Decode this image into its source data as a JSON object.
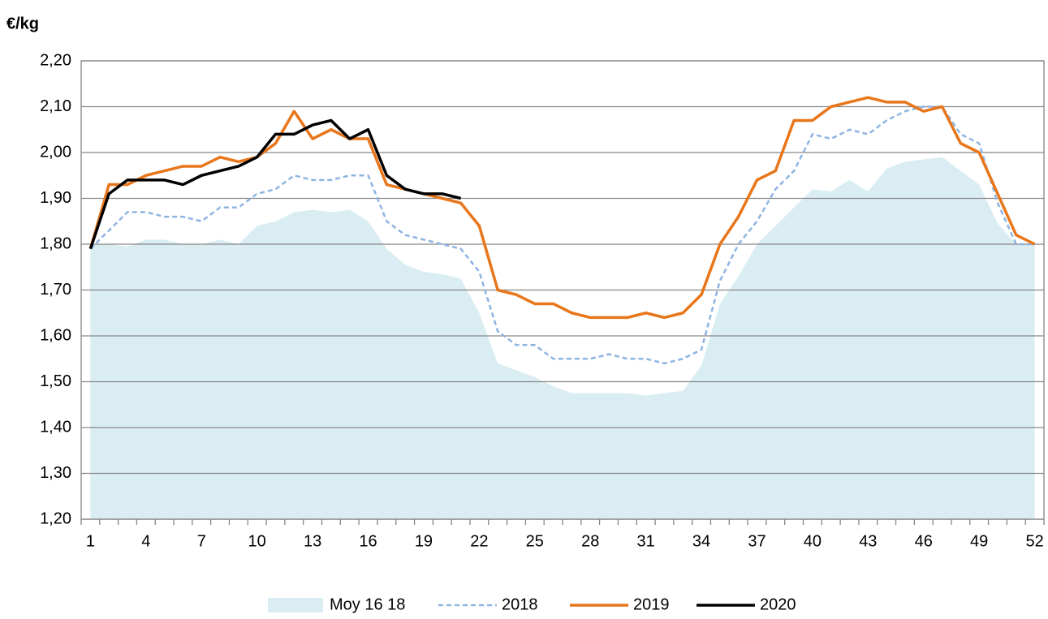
{
  "chart_data": {
    "type": "line",
    "y_label": "€/kg",
    "categories": [
      "1",
      null,
      null,
      "4",
      null,
      null,
      "7",
      null,
      null,
      "10",
      null,
      null,
      "13",
      null,
      null,
      "16",
      null,
      null,
      "19",
      null,
      null,
      "22",
      null,
      null,
      "25",
      null,
      null,
      "28",
      null,
      null,
      "31",
      null,
      null,
      "34",
      null,
      null,
      "37",
      null,
      null,
      "40",
      null,
      null,
      "43",
      null,
      null,
      "46",
      null,
      null,
      "49",
      null,
      null,
      "52"
    ],
    "ylim": [
      1.2,
      2.2
    ],
    "yticks": [
      {
        "value": 1.2,
        "label": "1,20"
      },
      {
        "value": 1.3,
        "label": "1,30"
      },
      {
        "value": 1.4,
        "label": "1,40"
      },
      {
        "value": 1.5,
        "label": "1,50"
      },
      {
        "value": 1.6,
        "label": "1,60"
      },
      {
        "value": 1.7,
        "label": "1,70"
      },
      {
        "value": 1.8,
        "label": "1,80"
      },
      {
        "value": 1.9,
        "label": "1,90"
      },
      {
        "value": 2.0,
        "label": "2,00"
      },
      {
        "value": 2.1,
        "label": "2,10"
      },
      {
        "value": 2.2,
        "label": "2,20"
      }
    ],
    "grid": true,
    "legend": "bottom",
    "series": [
      {
        "name": "Moy 16 18",
        "kind": "area",
        "color": "#daedf3",
        "values": [
          1.8,
          1.8,
          1.795,
          1.81,
          1.81,
          1.8,
          1.8,
          1.81,
          1.8,
          1.84,
          1.85,
          1.87,
          1.875,
          1.87,
          1.875,
          1.85,
          1.79,
          1.755,
          1.74,
          1.735,
          1.725,
          1.65,
          1.54,
          1.525,
          1.51,
          1.49,
          1.475,
          1.475,
          1.475,
          1.475,
          1.47,
          1.475,
          1.48,
          1.535,
          1.67,
          1.73,
          1.8,
          1.84,
          1.88,
          1.92,
          1.915,
          1.94,
          1.915,
          1.965,
          1.98,
          1.985,
          1.99,
          1.96,
          1.93,
          1.845,
          1.8,
          1.8
        ]
      },
      {
        "name": "2018",
        "kind": "line",
        "dashed": true,
        "color": "#8eb4e3",
        "values": [
          1.79,
          1.83,
          1.87,
          1.87,
          1.86,
          1.86,
          1.85,
          1.88,
          1.88,
          1.91,
          1.92,
          1.95,
          1.94,
          1.94,
          1.95,
          1.95,
          1.85,
          1.82,
          1.81,
          1.8,
          1.79,
          1.74,
          1.61,
          1.58,
          1.58,
          1.55,
          1.55,
          1.55,
          1.56,
          1.55,
          1.55,
          1.54,
          1.55,
          1.57,
          1.72,
          1.8,
          1.85,
          1.92,
          1.96,
          2.04,
          2.03,
          2.05,
          2.04,
          2.07,
          2.09,
          2.1,
          2.1,
          2.04,
          2.02,
          1.89,
          1.8,
          1.8
        ]
      },
      {
        "name": "2019",
        "kind": "line",
        "color": "#e8761b",
        "values": [
          1.79,
          1.93,
          1.93,
          1.95,
          1.96,
          1.97,
          1.97,
          1.99,
          1.98,
          1.99,
          2.02,
          2.09,
          2.03,
          2.05,
          2.03,
          2.03,
          1.93,
          1.92,
          1.91,
          1.9,
          1.89,
          1.84,
          1.7,
          1.69,
          1.67,
          1.67,
          1.65,
          1.64,
          1.64,
          1.64,
          1.65,
          1.64,
          1.65,
          1.69,
          1.8,
          1.86,
          1.94,
          1.96,
          2.07,
          2.07,
          2.1,
          2.11,
          2.12,
          2.11,
          2.11,
          2.09,
          2.1,
          2.02,
          2.0,
          1.91,
          1.82,
          1.8
        ]
      },
      {
        "name": "2020",
        "kind": "line",
        "color": "#000000",
        "values": [
          1.79,
          1.91,
          1.94,
          1.94,
          1.94,
          1.93,
          1.95,
          1.96,
          1.97,
          1.99,
          2.04,
          2.04,
          2.06,
          2.07,
          2.03,
          2.05,
          1.95,
          1.92,
          1.91,
          1.91,
          1.9,
          null,
          null,
          null,
          null,
          null,
          null,
          null,
          null,
          null,
          null,
          null,
          null,
          null,
          null,
          null,
          null,
          null,
          null,
          null,
          null,
          null,
          null,
          null,
          null,
          null,
          null,
          null,
          null,
          null,
          null,
          null
        ]
      }
    ]
  }
}
